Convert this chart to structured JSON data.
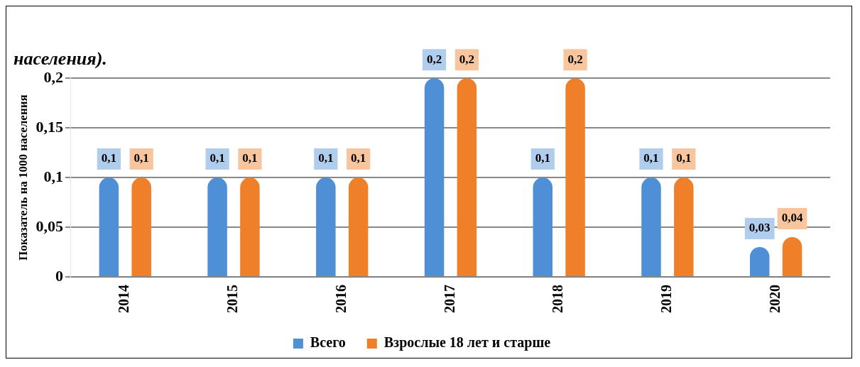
{
  "chart_data": {
    "type": "bar",
    "title": "населения).",
    "ylabel": "Показатель на 1000 населения",
    "categories": [
      "2014",
      "2015",
      "2016",
      "2017",
      "2018",
      "2019",
      "2020"
    ],
    "series": [
      {
        "name": "Всего",
        "color": "#4f8fd6",
        "values": [
          0.1,
          0.1,
          0.1,
          0.2,
          0.1,
          0.1,
          0.03
        ],
        "value_labels": [
          "0,1",
          "0,1",
          "0,1",
          "0,2",
          "0,1",
          "0,1",
          "0,03"
        ]
      },
      {
        "name": "Взрослые 18 лет и старше",
        "color": "#f07f2a",
        "values": [
          0.1,
          0.1,
          0.1,
          0.2,
          0.2,
          0.1,
          0.04
        ],
        "value_labels": [
          "0,1",
          "0,1",
          "0,1",
          "0,2",
          "0,2",
          "0,1",
          "0,04"
        ]
      }
    ],
    "ylim": [
      0,
      0.2
    ],
    "yticks": [
      0,
      {
        "value": 0.05,
        "label": "0,05"
      },
      {
        "value": 0.1,
        "label": "0,1"
      },
      {
        "value": 0.15,
        "label": "0,15"
      },
      {
        "value": 0.2,
        "label": "0,2"
      }
    ],
    "grid": "y",
    "legend": "bottom"
  }
}
